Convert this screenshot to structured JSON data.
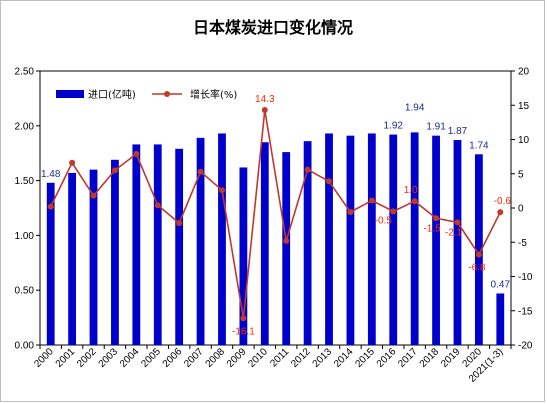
{
  "chart_data": {
    "type": "bar",
    "title": "日本煤炭进口变化情况",
    "categories": [
      "2000",
      "2001",
      "2002",
      "2003",
      "2004",
      "2005",
      "2006",
      "2007",
      "2008",
      "2009",
      "2010",
      "2011",
      "2012",
      "2013",
      "2014",
      "2015",
      "2016",
      "2017",
      "2018",
      "2019",
      "2020",
      "2021(1-3)"
    ],
    "series": [
      {
        "name": "进口(亿吨)",
        "type": "bar",
        "axis": "left",
        "color": "#0000cc",
        "values": [
          1.48,
          1.57,
          1.6,
          1.69,
          1.83,
          1.83,
          1.79,
          1.89,
          1.93,
          1.62,
          1.85,
          1.76,
          1.86,
          1.93,
          1.91,
          1.93,
          1.92,
          1.94,
          1.91,
          1.87,
          1.74,
          0.47
        ],
        "labels": {
          "0": "1.48",
          "16": "1.92",
          "17": "1.94",
          "18": "1.91",
          "19": "1.87",
          "20": "1.74",
          "21": "0.47"
        }
      },
      {
        "name": "增长率(%)",
        "type": "line",
        "axis": "right",
        "color": "#c0392b",
        "values": [
          0.2,
          6.6,
          1.8,
          5.5,
          7.9,
          0.4,
          -2.2,
          5.3,
          2.6,
          -16.1,
          14.3,
          -4.8,
          5.6,
          3.9,
          -0.6,
          1.1,
          -0.5,
          1.0,
          -1.5,
          -2.1,
          -6.8,
          -0.6
        ],
        "labels": {
          "9": "-16.1",
          "10": "14.3",
          "16": "-0.5",
          "17": "1.0",
          "18": "-1.5",
          "19": "-2.1",
          "20": "-6.8",
          "21": "-0.6"
        }
      }
    ],
    "y_left": {
      "ylim": [
        0,
        2.5
      ],
      "ticks": [
        "0.00",
        "0.50",
        "1.00",
        "1.50",
        "2.00",
        "2.50"
      ]
    },
    "y_right": {
      "ylim": [
        -20,
        20
      ],
      "ticks": [
        "-20",
        "-15",
        "-10",
        "-5",
        "0",
        "5",
        "10",
        "15",
        "20"
      ]
    },
    "grid": false,
    "legend": "top-left"
  }
}
